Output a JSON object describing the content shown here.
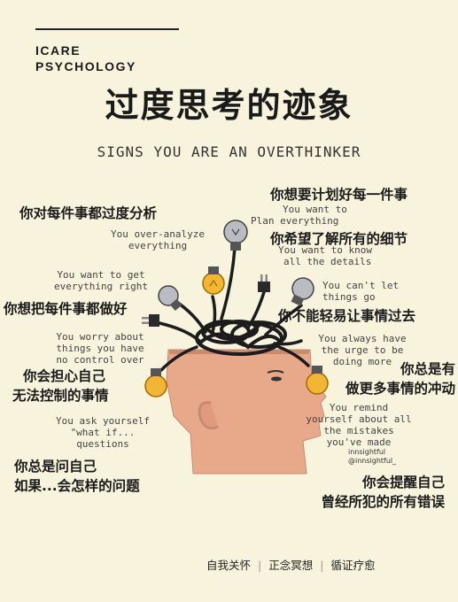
{
  "brand": {
    "line1": "ICARE",
    "line2": "PSYCHOLOGY"
  },
  "title": "过度思考的迹象",
  "subtitle": "SIGNS YOU ARE AN OVERTHINKER",
  "items": [
    {
      "zh": [
        "你对每件事都过度分析"
      ],
      "en": [
        "You over-analyze",
        "everything"
      ]
    },
    {
      "zh": [
        "你想要计划好每一件事"
      ],
      "en": [
        "You want to",
        "Plan everything"
      ]
    },
    {
      "zh": [
        "你希望了解所有的细节"
      ],
      "en": [
        "You want to know",
        "all the details"
      ]
    },
    {
      "zh": [
        "你想把每件事都做好"
      ],
      "en": [
        "You want to get",
        "everything right"
      ]
    },
    {
      "zh": [
        "你不能轻易让事情过去"
      ],
      "en": [
        "You can't let",
        "things go"
      ]
    },
    {
      "zh": [
        "你会担心自己",
        "无法控制的事情"
      ],
      "en": [
        "You worry about",
        "things you have",
        "no control over"
      ]
    },
    {
      "zh": [
        "你总是有",
        "做更多事情的冲动"
      ],
      "en": [
        "You always have",
        "the urge to be",
        "doing more"
      ]
    },
    {
      "zh": [
        "你总是问自己",
        "如果...会怎样的问题"
      ],
      "en": [
        "You ask yourself",
        "\"what if...",
        "questions"
      ]
    },
    {
      "zh": [
        "你会提醒自己",
        "曾经所犯的所有错误"
      ],
      "en": [
        "You remind",
        "yourself about all",
        "the mistakes",
        "you've made"
      ]
    }
  ],
  "handle": {
    "name": "innsightful",
    "account": "@innsightful_"
  },
  "footer": [
    "自我关怀",
    "正念冥想",
    "循证疗愈"
  ],
  "colors": {
    "background": "#f7f3dc",
    "skin": "#e8a88a",
    "bulb_on": "#f2b534",
    "bulb_off": "#b9bcc2",
    "wire": "#1c1c1c"
  }
}
